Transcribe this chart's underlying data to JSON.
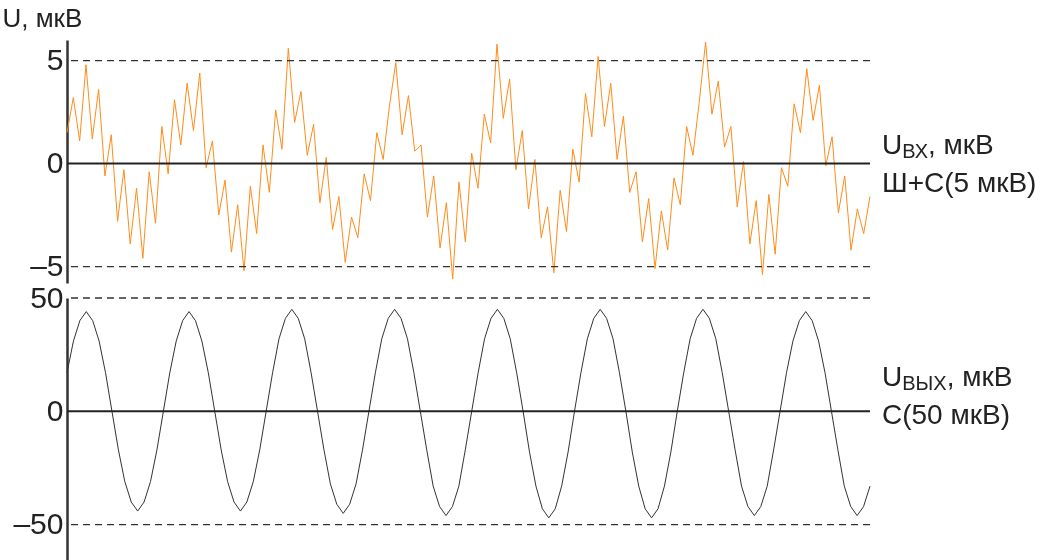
{
  "chart_data": [
    {
      "type": "line",
      "ylabel": "U, мкВ",
      "ylim": [
        -5.8,
        6
      ],
      "yticks": [
        {
          "value": -5,
          "label": "–5"
        },
        0,
        5
      ],
      "tick_labels": "y",
      "categories": [
        null,
        null,
        null,
        null,
        null,
        null,
        null,
        null,
        null,
        null,
        null,
        null,
        null,
        null,
        null,
        null,
        null,
        null,
        null,
        null,
        null,
        null,
        null,
        null,
        null,
        null,
        null,
        null,
        null,
        null,
        null,
        null,
        null,
        null,
        null,
        null,
        null,
        null,
        null,
        null,
        null,
        null,
        null,
        null,
        null,
        null,
        null,
        null,
        null,
        null,
        null,
        null,
        null,
        null,
        null,
        null,
        null,
        null,
        null,
        null,
        null,
        null,
        null,
        null,
        null,
        null,
        null,
        null,
        null,
        null,
        null,
        null,
        null,
        null,
        null,
        null,
        null,
        null,
        null,
        null,
        null,
        null,
        null,
        null,
        null,
        null,
        null,
        null,
        null,
        null,
        null,
        null,
        null,
        null,
        null,
        null,
        null,
        null,
        null,
        null,
        null,
        null,
        null,
        null,
        null,
        null,
        null,
        null,
        null,
        null,
        null,
        null,
        null,
        null,
        null,
        null,
        null,
        null,
        null,
        null,
        null,
        null,
        null,
        null,
        null,
        null,
        null,
        null
      ],
      "annotations": [
        "U$_{ВХ}$, мкВ",
        "Ш+С(5 мкВ)"
      ],
      "ref_lines": [
        {
          "axis": "y",
          "value": 5,
          "color": "#333333",
          "line_style": "dashed"
        },
        {
          "axis": "y",
          "value": -5,
          "color": "#333333",
          "line_style": "dashed"
        },
        {
          "axis": "y",
          "value": 0,
          "color": "#222222",
          "line_style": "solid"
        }
      ],
      "series": [
        {
          "color": "#ff8c1a",
          "values": [
            1.5,
            3.2,
            1.1,
            4.8,
            1.2,
            3.6,
            -0.6,
            1.4,
            -2.8,
            -0.3,
            -3.9,
            -1.2,
            -4.6,
            -0.4,
            -2.9,
            1.8,
            -0.5,
            3.1,
            0.9,
            3.9,
            1.6,
            4.4,
            -0.2,
            1.1,
            -2.5,
            -0.8,
            -4.3,
            -2.0,
            -5.2,
            -1.1,
            -3.4,
            0.9,
            -1.4,
            2.6,
            0.7,
            5.6,
            2.0,
            3.5,
            0.4,
            1.9,
            -1.9,
            0.3,
            -3.2,
            -1.6,
            -4.8,
            -2.6,
            -3.6,
            -0.5,
            -1.8,
            1.5,
            0.2,
            2.8,
            4.9,
            1.4,
            3.3,
            0.6,
            0.9,
            -2.6,
            -0.6,
            -4.1,
            -1.9,
            -5.6,
            -0.9,
            -3.8,
            0.5,
            -1.2,
            2.4,
            1.0,
            5.8,
            2.2,
            4.1,
            -0.3,
            1.6,
            -2.2,
            0.2,
            -3.6,
            -2.1,
            -5.3,
            -1.3,
            -3.3,
            0.7,
            -0.9,
            3.4,
            1.3,
            5.2,
            1.8,
            3.9,
            0.2,
            2.3,
            -1.4,
            -0.4,
            -3.8,
            -1.7,
            -5.1,
            -2.3,
            -4.2,
            -0.7,
            -2.0,
            1.8,
            0.4,
            3.0,
            5.9,
            2.4,
            4.0,
            0.8,
            1.8,
            -2.1,
            0.1,
            -3.9,
            -1.8,
            -5.4,
            -1.5,
            -4.4,
            -0.2,
            -1.1,
            2.9,
            1.5,
            4.6,
            2.1,
            3.8,
            -0.1,
            1.3,
            -2.4,
            -0.6,
            -4.2,
            -2.2,
            -3.4,
            -1.6
          ]
        }
      ]
    },
    {
      "type": "line",
      "ylim": [
        -70,
        50
      ],
      "yticks": [
        {
          "value": -50,
          "label": "–50"
        },
        0,
        50
      ],
      "tick_labels": "y",
      "categories": [
        null,
        null,
        null,
        null,
        null,
        null,
        null,
        null,
        null,
        null,
        null,
        null,
        null,
        null,
        null,
        null,
        null,
        null,
        null,
        null,
        null,
        null,
        null,
        null,
        null,
        null,
        null,
        null,
        null,
        null,
        null,
        null,
        null,
        null,
        null,
        null,
        null,
        null,
        null,
        null,
        null,
        null,
        null,
        null,
        null,
        null,
        null,
        null,
        null,
        null,
        null,
        null,
        null,
        null,
        null,
        null,
        null,
        null,
        null,
        null,
        null,
        null,
        null,
        null,
        null,
        null,
        null,
        null,
        null,
        null,
        null,
        null,
        null,
        null,
        null,
        null,
        null,
        null,
        null,
        null,
        null,
        null,
        null,
        null,
        null,
        null,
        null,
        null,
        null,
        null,
        null,
        null,
        null,
        null,
        null,
        null,
        null,
        null,
        null,
        null,
        null,
        null,
        null,
        null,
        null,
        null,
        null,
        null,
        null,
        null,
        null,
        null,
        null,
        null,
        null,
        null,
        null,
        null,
        null,
        null,
        null,
        null,
        null,
        null,
        null,
        null
      ],
      "annotations": [
        "U$_{ВЫХ}$, мкВ",
        "С(50 мкВ)"
      ],
      "ref_lines": [
        {
          "axis": "y",
          "value": 50,
          "color": "#333333",
          "line_style": "dashed"
        },
        {
          "axis": "y",
          "value": -50,
          "color": "#333333",
          "line_style": "dashed"
        },
        {
          "axis": "y",
          "value": 0,
          "color": "#222222",
          "line_style": "solid"
        }
      ],
      "series": [
        {
          "color": "#333333",
          "values": [
            17,
            31,
            40,
            44,
            40,
            31,
            17,
            0,
            -17,
            -31,
            -40,
            -44,
            -40,
            -31,
            -17,
            0,
            17,
            31,
            40,
            44,
            40,
            31,
            17,
            0,
            -17,
            -31,
            -40,
            -44,
            -40,
            -31,
            -17,
            0,
            17,
            32,
            41,
            45,
            41,
            32,
            17,
            0,
            -17,
            -32,
            -41,
            -45,
            -41,
            -32,
            -17,
            0,
            17,
            32,
            41,
            45,
            41,
            32,
            17,
            0,
            -17,
            -33,
            -42,
            -46,
            -42,
            -33,
            -17,
            0,
            17,
            32,
            41,
            45,
            41,
            32,
            17,
            0,
            -18,
            -33,
            -43,
            -47,
            -43,
            -33,
            -18,
            0,
            17,
            32,
            41,
            45,
            41,
            32,
            17,
            0,
            -18,
            -33,
            -43,
            -47,
            -43,
            -33,
            -18,
            0,
            17,
            32,
            41,
            45,
            41,
            32,
            17,
            0,
            -17,
            -33,
            -42,
            -46,
            -42,
            -33,
            -17,
            0,
            17,
            31,
            40,
            44,
            40,
            31,
            17,
            0,
            -17,
            -33,
            -42,
            -46,
            -42,
            -33
          ]
        }
      ]
    }
  ]
}
